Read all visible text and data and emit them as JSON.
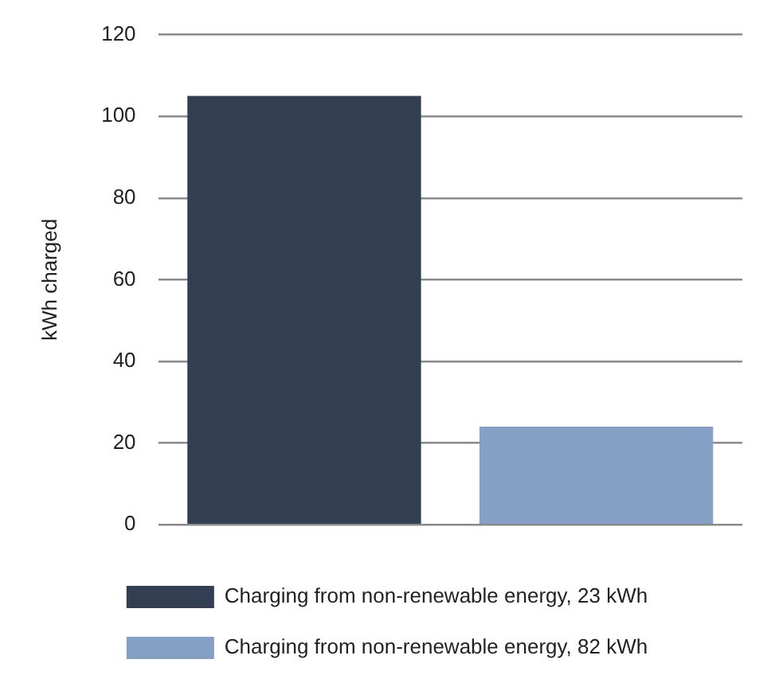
{
  "chart_data": {
    "type": "bar",
    "ylabel": "kWh charged",
    "categories": [
      null,
      null
    ],
    "stacked": true,
    "series": [
      {
        "name": "Charging from non-renewable energy, 23 kWh",
        "color": "#323e52",
        "values": [
          105,
          null
        ]
      },
      {
        "name": "Charging from non-renewable energy, 82 kWh",
        "color": "#84a0c4",
        "values": [
          null,
          24
        ]
      }
    ],
    "ylim": [
      0,
      120
    ],
    "yticks": [
      0,
      20,
      40,
      60,
      80,
      100,
      120
    ],
    "grid": "y",
    "legend": "bottom"
  }
}
